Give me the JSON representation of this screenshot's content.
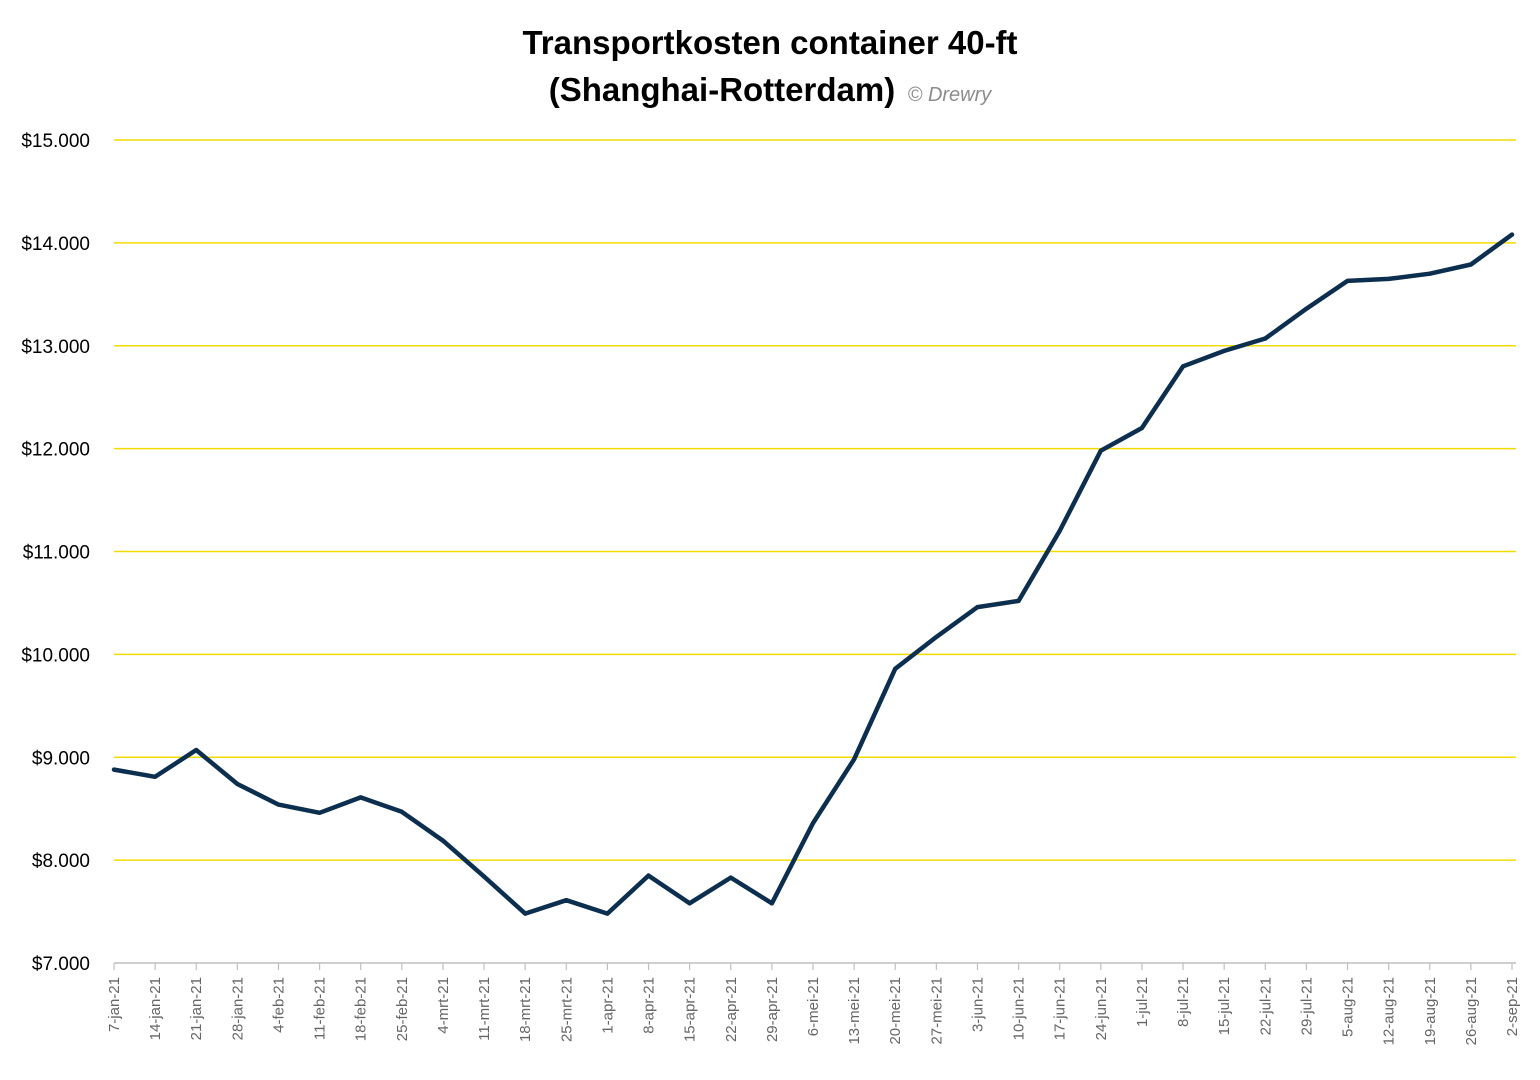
{
  "chart_data": {
    "type": "line",
    "title": "Transportkosten container 40-ft",
    "title_line2": "(Shanghai-Rotterdam)",
    "credit": "© Drewry",
    "xlabel": "",
    "ylabel": "",
    "ylim": [
      7000,
      15000
    ],
    "yticks": [
      7000,
      8000,
      9000,
      10000,
      11000,
      12000,
      13000,
      14000,
      15000
    ],
    "ytick_labels": [
      "$7.000",
      "$8.000",
      "$9.000",
      "$10.000",
      "$11.000",
      "$12.000",
      "$13.000",
      "$14.000",
      "$15.000"
    ],
    "grid": true,
    "legend": "none",
    "colors": {
      "line": "#0d2f4f",
      "grid": "#f2dc00",
      "axis": "#bfbfbf"
    },
    "categories": [
      "7-jan-21",
      "14-jan-21",
      "21-jan-21",
      "28-jan-21",
      "4-feb-21",
      "11-feb-21",
      "18-feb-21",
      "25-feb-21",
      "4-mrt-21",
      "11-mrt-21",
      "18-mrt-21",
      "25-mrt-21",
      "1-apr-21",
      "8-apr-21",
      "15-apr-21",
      "22-apr-21",
      "29-apr-21",
      "6-mei-21",
      "13-mei-21",
      "20-mei-21",
      "27-mei-21",
      "3-jun-21",
      "10-jun-21",
      "17-jun-21",
      "24-jun-21",
      "1-jul-21",
      "8-jul-21",
      "15-jul-21",
      "22-jul-21",
      "29-jul-21",
      "5-aug-21",
      "12-aug-21",
      "19-aug-21",
      "26-aug-21",
      "2-sep-21"
    ],
    "series": [
      {
        "name": "",
        "values": [
          8880,
          8810,
          9070,
          8740,
          8540,
          8460,
          8610,
          8470,
          8190,
          7840,
          7480,
          7610,
          7480,
          7850,
          7580,
          7830,
          7580,
          8360,
          8980,
          9860,
          10170,
          10460,
          10520,
          11200,
          11980,
          12200,
          12800,
          12950,
          13070,
          13360,
          13630,
          13650,
          13700,
          13790,
          14080
        ]
      }
    ]
  }
}
